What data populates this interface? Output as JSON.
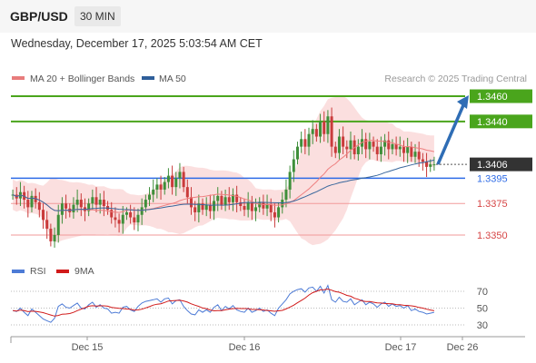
{
  "header": {
    "symbol": "GBP/USD",
    "timeframe": "30 MIN"
  },
  "datetime": "Wednesday, December 17, 2025 5:03:54 AM CET",
  "legend": {
    "bollinger": "MA 20 + Bollinger Bands",
    "ma50": "MA 50",
    "rsi": "RSI",
    "rsi_ma": "9MA"
  },
  "credit": "Research © 2025 Trading Central",
  "colors": {
    "green": "#4aa51c",
    "blue": "#2e6be6",
    "red": "#e05b5b",
    "band": "#f9d4d4",
    "arrow": "#2f6db5",
    "price_tag": "#333333"
  },
  "chart_data": {
    "type": "candlestick",
    "ylim": [
      1.332,
      1.3475
    ],
    "levels": [
      {
        "label": "1.3460",
        "value": 1.346,
        "kind": "target-high"
      },
      {
        "label": "1.3440",
        "value": 1.344,
        "kind": "target"
      },
      {
        "label": "1.3406",
        "value": 1.3406,
        "kind": "current"
      },
      {
        "label": "1.3395",
        "value": 1.3395,
        "kind": "pivot"
      },
      {
        "label": "1.3375",
        "value": 1.3375,
        "kind": "support"
      },
      {
        "label": "1.3350",
        "value": 1.335,
        "kind": "support"
      }
    ],
    "x_ticks": [
      "Dec 15",
      "Dec 16",
      "Dec 17",
      "Dec 26"
    ],
    "rsi_ticks": [
      "70",
      "50",
      "30"
    ],
    "rsi_ylim": [
      20,
      80
    ],
    "projection": {
      "from": 1.3406,
      "to": 1.346
    },
    "closes": [
      1.3382,
      1.3379,
      1.3384,
      1.3378,
      1.3372,
      1.3381,
      1.3376,
      1.337,
      1.3362,
      1.3355,
      1.3345,
      1.335,
      1.3366,
      1.3375,
      1.3371,
      1.3368,
      1.3374,
      1.3378,
      1.3372,
      1.3369,
      1.3375,
      1.338,
      1.3374,
      1.3378,
      1.3373,
      1.337,
      1.3364,
      1.3362,
      1.3359,
      1.3366,
      1.3368,
      1.3364,
      1.336,
      1.3366,
      1.3372,
      1.3378,
      1.3382,
      1.3386,
      1.339,
      1.3386,
      1.3392,
      1.3397,
      1.3388,
      1.3395,
      1.34,
      1.3388,
      1.338,
      1.3372,
      1.3368,
      1.3375,
      1.337,
      1.3374,
      1.3369,
      1.3377,
      1.3381,
      1.3374,
      1.338,
      1.3376,
      1.3382,
      1.3376,
      1.3373,
      1.337,
      1.3376,
      1.3369,
      1.3372,
      1.3376,
      1.3371,
      1.3374,
      1.3368,
      1.3364,
      1.3372,
      1.3378,
      1.3386,
      1.34,
      1.341,
      1.342,
      1.3426,
      1.342,
      1.343,
      1.3434,
      1.3428,
      1.344,
      1.343,
      1.3444,
      1.342,
      1.3415,
      1.3428,
      1.342,
      1.3418,
      1.3425,
      1.3414,
      1.342,
      1.3426,
      1.3418,
      1.3424,
      1.342,
      1.3414,
      1.342,
      1.3425,
      1.3418,
      1.3422,
      1.3418,
      1.342,
      1.3415,
      1.342,
      1.3412,
      1.3416,
      1.341,
      1.3408,
      1.3404,
      1.3406,
      1.3406
    ],
    "rsi": [
      47,
      46,
      50,
      45,
      41,
      49,
      45,
      41,
      37,
      35,
      33,
      38,
      52,
      55,
      51,
      50,
      53,
      56,
      50,
      49,
      54,
      57,
      51,
      54,
      50,
      49,
      44,
      45,
      44,
      51,
      52,
      48,
      46,
      52,
      56,
      58,
      59,
      60,
      61,
      57,
      61,
      62,
      55,
      59,
      60,
      52,
      47,
      43,
      42,
      48,
      45,
      48,
      45,
      51,
      54,
      47,
      52,
      49,
      53,
      48,
      46,
      45,
      50,
      45,
      47,
      50,
      46,
      48,
      44,
      41,
      50,
      55,
      60,
      67,
      70,
      72,
      73,
      69,
      74,
      75,
      70,
      76,
      68,
      77,
      60,
      57,
      63,
      58,
      57,
      61,
      54,
      57,
      60,
      54,
      57,
      55,
      51,
      55,
      57,
      52,
      55,
      52,
      53,
      50,
      53,
      47,
      49,
      46,
      45,
      43,
      44,
      45
    ]
  }
}
